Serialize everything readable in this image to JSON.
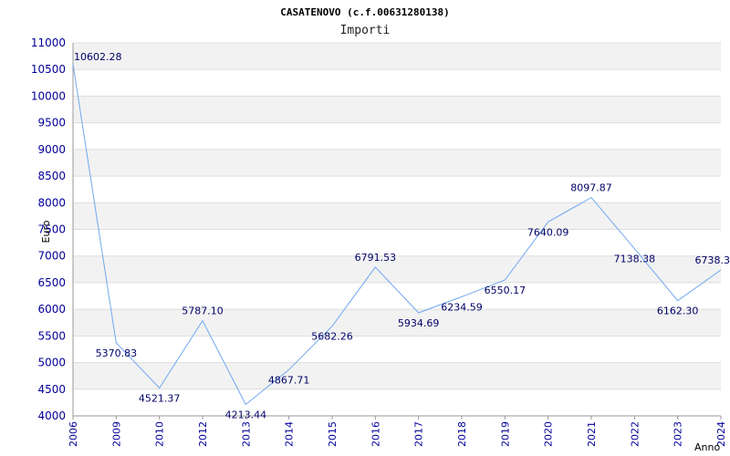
{
  "chart_data": {
    "type": "line",
    "title": "CASATENOVO (c.f.00631280138)",
    "subtitle": "Importi",
    "ylabel": "Euro",
    "xlabel": "Anno",
    "ylim": [
      4000,
      11000
    ],
    "yticks": [
      4000,
      4500,
      5000,
      5500,
      6000,
      6500,
      7000,
      7500,
      8000,
      8500,
      9000,
      9500,
      10000,
      10500,
      11000
    ],
    "categories": [
      "2006",
      "2009",
      "2010",
      "2012",
      "2013",
      "2014",
      "2015",
      "2016",
      "2017",
      "2018",
      "2019",
      "2020",
      "2021",
      "2022",
      "2023",
      "2024"
    ],
    "values": [
      10602.28,
      5370.83,
      4521.37,
      5787.1,
      4213.44,
      4867.71,
      5682.26,
      6791.53,
      5934.69,
      6234.59,
      6550.17,
      7640.09,
      8097.87,
      7138.38,
      6162.3,
      6738.3
    ],
    "labels": [
      "10602.28",
      "5370.83",
      "4521.37",
      "5787.10",
      "4213.44",
      "4867.71",
      "5682.26",
      "6791.53",
      "5934.69",
      "6234.59",
      "6550.17",
      "7640.09",
      "8097.87",
      "7138.38",
      "6162.30",
      "6738.3"
    ],
    "grid": true,
    "legend": "none",
    "colors": {
      "line": "#6fa8f0",
      "band": "#f2f2f2",
      "grid": "#dddddd",
      "tick_text": "#000099",
      "label_text": "#000066"
    }
  }
}
